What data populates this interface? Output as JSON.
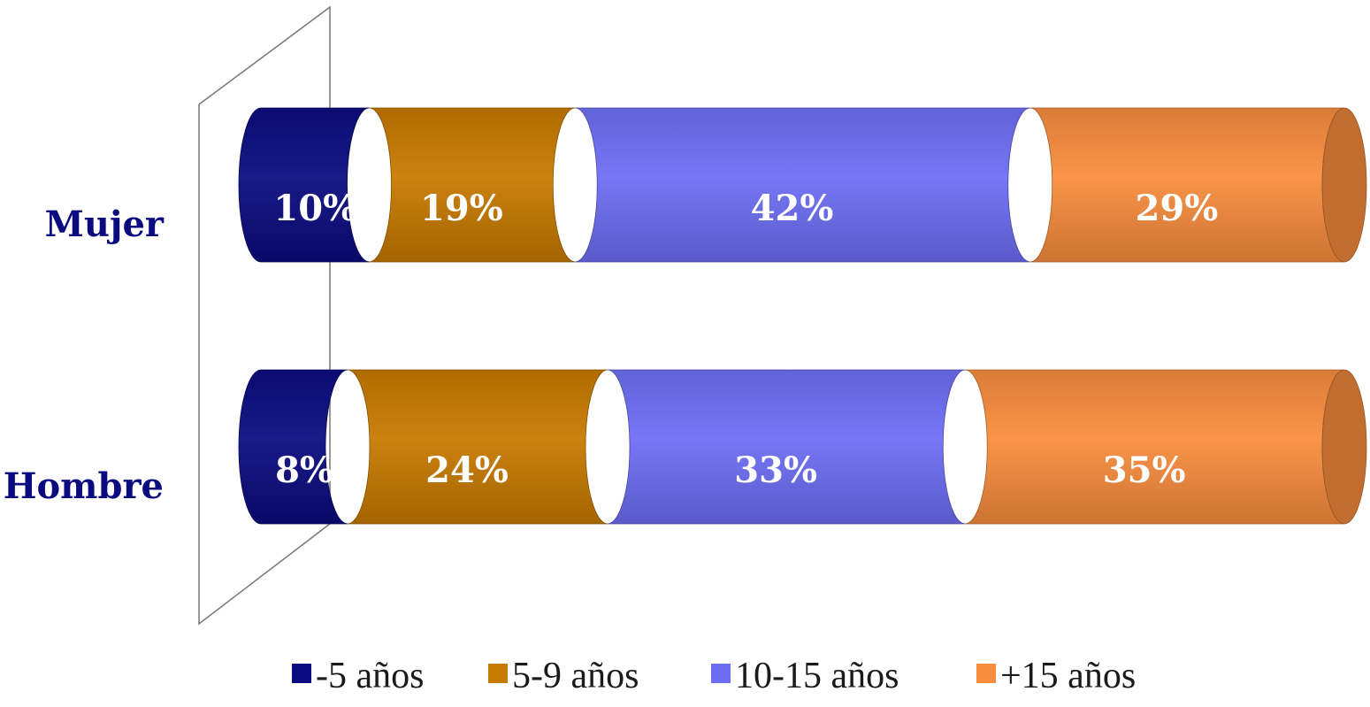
{
  "chart_data": {
    "type": "bar",
    "orientation": "horizontal",
    "stacked": true,
    "percent": true,
    "style": "3d-cylinder",
    "categories": [
      "Mujer",
      "Hombre"
    ],
    "series": [
      {
        "name": "-5 años",
        "values": [
          10,
          8
        ],
        "color": "#0b0b80"
      },
      {
        "name": "5-9 años",
        "values": [
          19,
          24
        ],
        "color": "#c87a00"
      },
      {
        "name": "10-15 años",
        "values": [
          42,
          33
        ],
        "color": "#6e6ef5"
      },
      {
        "name": "+15 años",
        "values": [
          29,
          35
        ],
        "color": "#f98d3e"
      }
    ],
    "value_labels": {
      "Mujer": [
        "10%",
        "19%",
        "42%",
        "29%"
      ],
      "Hombre": [
        "8%",
        "24%",
        "33%",
        "35%"
      ]
    },
    "category_label_color": "#0b0b80",
    "xlim": [
      0,
      100
    ],
    "grid": false,
    "legend": "bottom",
    "title": "",
    "xlabel": "",
    "ylabel": ""
  }
}
